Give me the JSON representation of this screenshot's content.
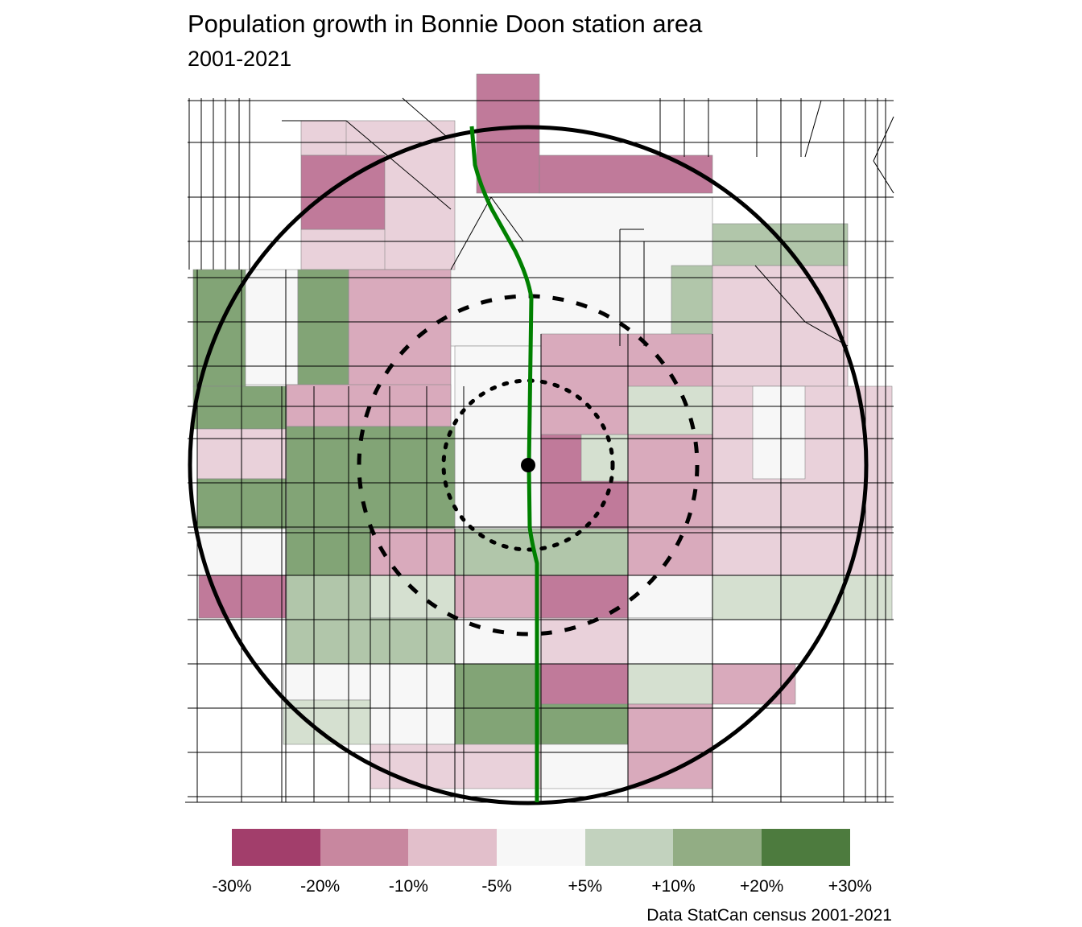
{
  "title": "Population growth in Bonnie Doon station area",
  "subtitle": "2001-2021",
  "caption": "Data StatCan census 2001-2021",
  "legend": {
    "labels": [
      "-30%",
      "-20%",
      "-10%",
      "-5%",
      "+5%",
      "+10%",
      "+20%",
      "+30%"
    ],
    "colors": [
      "#a23e6b",
      "#c8879f",
      "#e2bfcb",
      "#f7f7f7",
      "#c2d2be",
      "#92ad84",
      "#4d7b3e"
    ]
  },
  "map_layers": {
    "transit_line_color": "#008000",
    "station": "station point with 400m, 800m and 1600m buffer circles (dotted, dashed, solid)"
  }
}
